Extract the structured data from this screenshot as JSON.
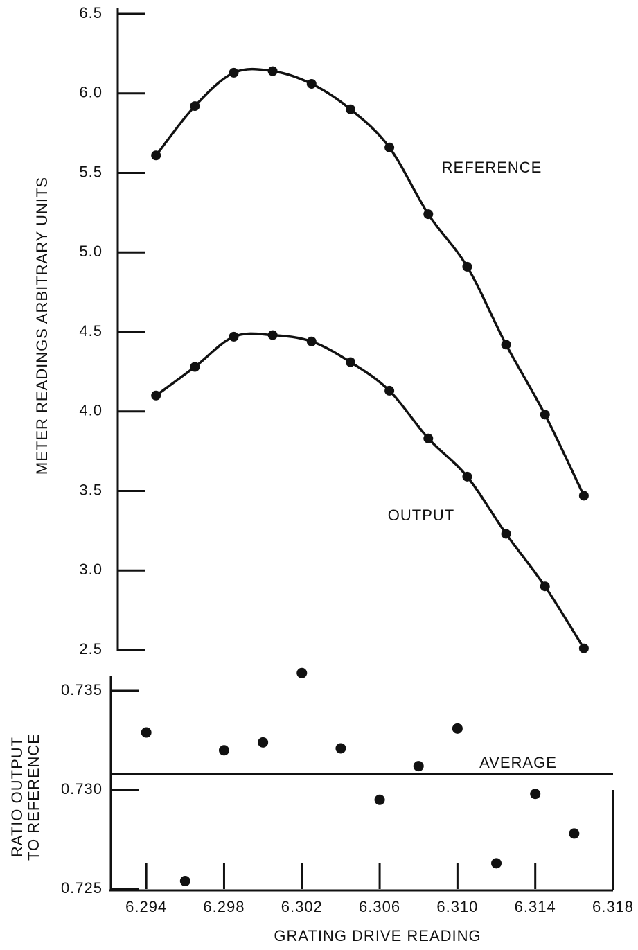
{
  "chart_data": [
    {
      "type": "line",
      "ylabel": "METER READINGS ARBITRARY UNITS",
      "x": [
        6.2945,
        6.2965,
        6.2985,
        6.3005,
        6.3025,
        6.3045,
        6.3065,
        6.3085,
        6.3105,
        6.3125,
        6.3145,
        6.3165
      ],
      "series": [
        {
          "name": "REFERENCE",
          "color": "#111111",
          "values": [
            5.61,
            5.92,
            6.13,
            6.14,
            6.06,
            5.9,
            5.66,
            5.24,
            4.91,
            4.42,
            3.98,
            3.47
          ]
        },
        {
          "name": "OUTPUT",
          "color": "#111111",
          "values": [
            4.1,
            4.28,
            4.47,
            4.48,
            4.44,
            4.31,
            4.13,
            3.83,
            3.59,
            3.23,
            2.9,
            2.51
          ]
        }
      ],
      "xlim": [
        6.292,
        6.318
      ],
      "ylim": [
        2.5,
        6.5
      ],
      "yticks": [
        6.5,
        {
          "value": 6.0,
          "label": "6.0"
        },
        5.5,
        {
          "value": 5.0,
          "label": "5.0"
        },
        4.5,
        {
          "value": 4.0,
          "label": "4.0"
        },
        3.5,
        {
          "value": 3.0,
          "label": "3.0"
        },
        2.5
      ]
    },
    {
      "type": "scatter",
      "ylabel": [
        "RATIO OUTPUT",
        "TO REFERENCE"
      ],
      "xlabel": "GRATING DRIVE READING",
      "x": [
        6.294,
        6.296,
        6.298,
        6.3,
        6.302,
        6.304,
        6.306,
        6.308,
        6.31,
        6.312,
        6.314,
        6.316
      ],
      "values": [
        0.7329,
        0.7254,
        0.732,
        0.7324,
        0.7359,
        0.7321,
        0.7295,
        0.7312,
        0.7331,
        0.7263,
        0.7298,
        0.7278
      ],
      "color": "#111111",
      "average": {
        "value": 0.7308,
        "label": "AVERAGE"
      },
      "xlim": [
        6.292,
        6.318
      ],
      "ylim": [
        0.725,
        0.736
      ],
      "yticks": [
        0.735,
        {
          "value": 0.73,
          "label": "0.730"
        },
        0.725
      ],
      "xticks": [
        6.294,
        6.298,
        6.302,
        6.306,
        {
          "value": 6.31,
          "label": "6.310"
        },
        6.314,
        6.318
      ]
    }
  ]
}
